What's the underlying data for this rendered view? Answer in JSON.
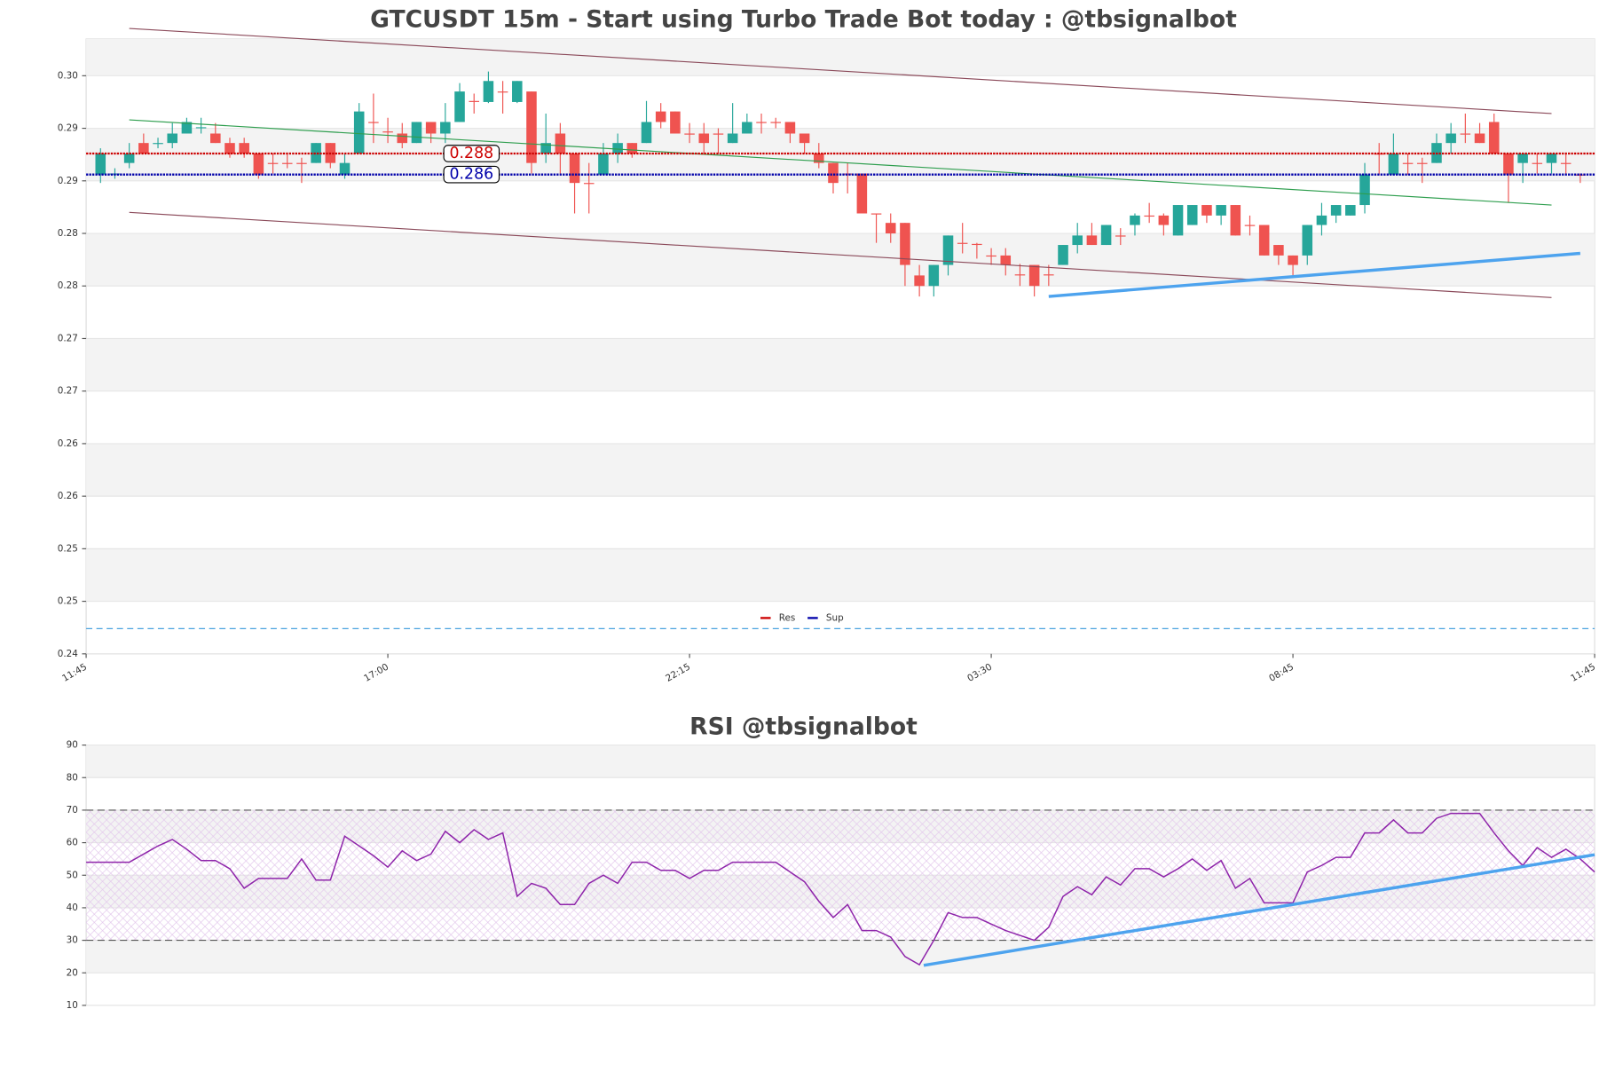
{
  "chart_data": [
    {
      "type": "candlestick",
      "title": "GTCUSDT 15m - Start using Turbo Trade Bot today : @tbsignalbot",
      "x": [
        1,
        2,
        3,
        4,
        5,
        6,
        7,
        8,
        9,
        10,
        11,
        12,
        13,
        14,
        15,
        16,
        17,
        18,
        19,
        20,
        21,
        22,
        23,
        24,
        25,
        26,
        27,
        28,
        29,
        30,
        31,
        32,
        33,
        34,
        35,
        36,
        37,
        38,
        39,
        40,
        41,
        42,
        43,
        44,
        45,
        46,
        47,
        48,
        49,
        50,
        51,
        52,
        53,
        54,
        55,
        56,
        57,
        58,
        59,
        60,
        61,
        62,
        63,
        64,
        65,
        66,
        67,
        68,
        69,
        70,
        71,
        72,
        73,
        74,
        75,
        76,
        77,
        78,
        79,
        80,
        81,
        82,
        83,
        84,
        85,
        86,
        87,
        88,
        89,
        90,
        91,
        92,
        93,
        94,
        95,
        96,
        97,
        98,
        99,
        100,
        101,
        102,
        103,
        104
      ],
      "open": [
        0.2856,
        0.2856,
        0.2867,
        0.2886,
        0.2886,
        0.2886,
        0.2895,
        0.29,
        0.2895,
        0.2886,
        0.2886,
        0.2876,
        0.2867,
        0.2867,
        0.2867,
        0.2867,
        0.2886,
        0.2856,
        0.2876,
        0.2906,
        0.2897,
        0.2895,
        0.2886,
        0.2906,
        0.2895,
        0.2906,
        0.2926,
        0.2925,
        0.2935,
        0.2925,
        0.2935,
        0.2876,
        0.2895,
        0.2876,
        0.2848,
        0.2856,
        0.2876,
        0.2886,
        0.2886,
        0.2916,
        0.2916,
        0.2895,
        0.2895,
        0.2895,
        0.2886,
        0.2895,
        0.2906,
        0.2906,
        0.2906,
        0.2895,
        0.2876,
        0.2867,
        0.2857,
        0.2857,
        0.2819,
        0.281,
        0.281,
        0.276,
        0.275,
        0.277,
        0.2791,
        0.279,
        0.2779,
        0.2779,
        0.2761,
        0.277,
        0.2761,
        0.277,
        0.2789,
        0.2798,
        0.2789,
        0.2798,
        0.2808,
        0.2817,
        0.2817,
        0.2798,
        0.2808,
        0.2827,
        0.2817,
        0.2827,
        0.2808,
        0.2808,
        0.2789,
        0.2779,
        0.2779,
        0.2808,
        0.2817,
        0.2817,
        0.2827,
        0.2876,
        0.2856,
        0.2867,
        0.2867,
        0.2867,
        0.2886,
        0.2895,
        0.2895,
        0.2906,
        0.2876,
        0.2867,
        0.2867,
        0.2867,
        0.2867,
        0.2856
      ],
      "high": [
        0.2881,
        0.2862,
        0.2886,
        0.2895,
        0.2891,
        0.2905,
        0.291,
        0.291,
        0.2905,
        0.2891,
        0.2891,
        0.2876,
        0.2876,
        0.2876,
        0.2872,
        0.2886,
        0.2886,
        0.2876,
        0.2924,
        0.2933,
        0.291,
        0.2905,
        0.2906,
        0.2906,
        0.2924,
        0.2943,
        0.2933,
        0.2954,
        0.2945,
        0.2945,
        0.2935,
        0.2914,
        0.2905,
        0.2876,
        0.2867,
        0.2886,
        0.2895,
        0.2886,
        0.2926,
        0.2924,
        0.2916,
        0.2905,
        0.2905,
        0.29,
        0.2924,
        0.2914,
        0.2914,
        0.291,
        0.2906,
        0.2895,
        0.2886,
        0.2867,
        0.2867,
        0.2857,
        0.2819,
        0.2819,
        0.281,
        0.277,
        0.277,
        0.2798,
        0.281,
        0.2791,
        0.2786,
        0.2786,
        0.2771,
        0.277,
        0.277,
        0.2789,
        0.281,
        0.281,
        0.2808,
        0.2805,
        0.2819,
        0.2829,
        0.2819,
        0.2827,
        0.2827,
        0.2827,
        0.2827,
        0.2827,
        0.2817,
        0.2808,
        0.2789,
        0.2779,
        0.2808,
        0.2829,
        0.2827,
        0.2827,
        0.2867,
        0.2886,
        0.2895,
        0.2876,
        0.2872,
        0.2895,
        0.2905,
        0.2914,
        0.2905,
        0.2914,
        0.2876,
        0.2876,
        0.2876,
        0.2876,
        0.2876,
        0.2857
      ],
      "low": [
        0.2848,
        0.2852,
        0.2862,
        0.2876,
        0.2881,
        0.2881,
        0.2895,
        0.2895,
        0.2886,
        0.2872,
        0.2872,
        0.2852,
        0.2857,
        0.2862,
        0.2848,
        0.2867,
        0.2862,
        0.2852,
        0.2876,
        0.2886,
        0.2886,
        0.2881,
        0.2886,
        0.2886,
        0.2886,
        0.2906,
        0.2914,
        0.2924,
        0.2914,
        0.2924,
        0.2857,
        0.2867,
        0.2857,
        0.2819,
        0.2819,
        0.2856,
        0.2867,
        0.2872,
        0.2886,
        0.29,
        0.2895,
        0.2886,
        0.2876,
        0.2876,
        0.2886,
        0.2895,
        0.2895,
        0.29,
        0.2886,
        0.2876,
        0.2862,
        0.2838,
        0.2838,
        0.2819,
        0.2791,
        0.2791,
        0.275,
        0.274,
        0.274,
        0.276,
        0.2781,
        0.2776,
        0.277,
        0.276,
        0.275,
        0.274,
        0.275,
        0.277,
        0.2781,
        0.2789,
        0.2789,
        0.2789,
        0.2798,
        0.281,
        0.2798,
        0.2798,
        0.2808,
        0.281,
        0.2808,
        0.2798,
        0.2798,
        0.2779,
        0.277,
        0.276,
        0.277,
        0.2798,
        0.281,
        0.2817,
        0.2819,
        0.2856,
        0.2856,
        0.2856,
        0.2848,
        0.2867,
        0.2876,
        0.2886,
        0.2886,
        0.2876,
        0.2829,
        0.2848,
        0.2857,
        0.2857,
        0.2857,
        0.2848
      ],
      "close": [
        0.2876,
        0.2857,
        0.2876,
        0.2876,
        0.2886,
        0.2895,
        0.2906,
        0.2901,
        0.2886,
        0.2876,
        0.2876,
        0.2856,
        0.2866,
        0.2866,
        0.2866,
        0.2886,
        0.2867,
        0.2867,
        0.2916,
        0.2905,
        0.2896,
        0.2886,
        0.2906,
        0.2895,
        0.2906,
        0.2935,
        0.2925,
        0.2945,
        0.2934,
        0.2945,
        0.2867,
        0.2886,
        0.2876,
        0.2848,
        0.2847,
        0.2876,
        0.2886,
        0.2876,
        0.2906,
        0.2906,
        0.2895,
        0.2894,
        0.2886,
        0.2894,
        0.2895,
        0.2906,
        0.2905,
        0.2905,
        0.2895,
        0.2886,
        0.2867,
        0.2848,
        0.2856,
        0.2819,
        0.2818,
        0.28,
        0.277,
        0.275,
        0.277,
        0.2798,
        0.279,
        0.2789,
        0.2778,
        0.277,
        0.276,
        0.275,
        0.276,
        0.2789,
        0.2798,
        0.2789,
        0.2808,
        0.2797,
        0.2817,
        0.2816,
        0.2808,
        0.2827,
        0.2827,
        0.2817,
        0.2827,
        0.2798,
        0.2807,
        0.2779,
        0.2779,
        0.277,
        0.2808,
        0.2817,
        0.2827,
        0.2827,
        0.2856,
        0.2875,
        0.2876,
        0.2866,
        0.2866,
        0.2886,
        0.2895,
        0.2894,
        0.2886,
        0.2876,
        0.2856,
        0.2876,
        0.2866,
        0.2876,
        0.2866,
        0.2855
      ],
      "up_color": "#26a69a",
      "down_color": "#ef5350",
      "xlim": [
        0,
        105
      ],
      "xticks": [
        {
          "value": 0,
          "label": "11:45"
        },
        {
          "value": 21,
          "label": "17:00"
        },
        {
          "value": 42,
          "label": "22:15"
        },
        {
          "value": 63,
          "label": "03:30"
        },
        {
          "value": 84,
          "label": "08:45"
        },
        {
          "value": 105,
          "label": "11:45"
        }
      ],
      "ylim": [
        0.24,
        0.2985
      ],
      "yticks": [
        0.24,
        {
          "value": 0.245,
          "label": "0.25"
        },
        0.25,
        {
          "value": 0.255,
          "label": "0.26"
        },
        0.26,
        {
          "value": 0.265,
          "label": "0.27"
        },
        0.27,
        {
          "value": 0.275,
          "label": "0.28"
        },
        0.28,
        {
          "value": 0.285,
          "label": "0.29"
        },
        0.29,
        {
          "value": 0.295,
          "label": "0.30"
        }
      ],
      "bands": true,
      "hlines": [
        {
          "name": "Res",
          "color": "#cc0000",
          "values": [
            0.2876
          ],
          "value_labels": [
            "0.288"
          ]
        },
        {
          "name": "Sup",
          "color": "#0000aa",
          "values": [
            0.2856
          ],
          "value_labels": [
            "0.286"
          ]
        }
      ],
      "trend_lines": [
        {
          "color": "#8b4a5a",
          "width": 1,
          "x": [
            3,
            102
          ],
          "values": [
            0.2995,
            0.2914
          ]
        },
        {
          "color": "#2e9e4e",
          "width": 1,
          "x": [
            3,
            102
          ],
          "values": [
            0.2908,
            0.2827
          ]
        },
        {
          "color": "#8b4a5a",
          "width": 1,
          "x": [
            3,
            102
          ],
          "values": [
            0.282,
            0.2739
          ]
        },
        {
          "color": "#4da3ee",
          "width": 3,
          "x": [
            67,
            104
          ],
          "values": [
            0.274,
            0.2781
          ]
        }
      ],
      "baseline": {
        "value": 0.2424,
        "color": "#4aa3df"
      },
      "legend": "lower center"
    },
    {
      "type": "line",
      "title": "RSI @tbsignalbot",
      "x": [
        0,
        1,
        2,
        3,
        4,
        5,
        6,
        7,
        8,
        9,
        10,
        11,
        12,
        13,
        14,
        15,
        16,
        17,
        18,
        19,
        20,
        21,
        22,
        23,
        24,
        25,
        26,
        27,
        28,
        29,
        30,
        31,
        32,
        33,
        34,
        35,
        36,
        37,
        38,
        39,
        40,
        41,
        42,
        43,
        44,
        45,
        46,
        47,
        48,
        49,
        50,
        51,
        52,
        53,
        54,
        55,
        56,
        57,
        58,
        59,
        60,
        61,
        62,
        63,
        64,
        65,
        66,
        67,
        68,
        69,
        70,
        71,
        72,
        73,
        74,
        75,
        76,
        77,
        78,
        79,
        80,
        81,
        82,
        83,
        84,
        85,
        86,
        87,
        88,
        89,
        90,
        91,
        92,
        93,
        94,
        95,
        96,
        97,
        98,
        99,
        100,
        101,
        102,
        103,
        104,
        105
      ],
      "series": [
        {
          "color": "#8e24aa",
          "values": [
            54,
            54,
            54,
            54,
            56.5,
            59,
            61,
            58,
            54.5,
            54.5,
            52,
            46,
            49,
            49,
            49,
            55,
            48.5,
            48.5,
            62,
            59,
            56,
            52.5,
            57.5,
            54.5,
            56.5,
            63.5,
            60,
            64,
            61,
            63,
            43.5,
            47.5,
            46,
            41,
            41,
            47.5,
            50,
            47.5,
            54,
            54,
            51.5,
            51.5,
            49,
            51.5,
            51.5,
            54,
            54,
            54,
            54,
            51,
            48,
            42,
            37,
            41,
            33,
            33,
            31,
            25,
            22.5,
            30,
            38.5,
            37,
            37,
            35,
            33,
            31.5,
            30,
            34,
            43.5,
            46.5,
            44,
            49.5,
            47,
            52,
            52,
            49.5,
            52,
            55,
            51.5,
            54.5,
            46,
            49,
            41.5,
            41.5,
            41.5,
            51,
            53,
            55.5,
            55.5,
            63,
            63,
            67,
            63,
            63,
            67.5,
            69,
            69,
            69,
            63,
            57.5,
            53,
            58.5,
            55.5,
            58,
            55,
            51
          ]
        }
      ],
      "xlim": [
        0,
        105
      ],
      "ylim": [
        10,
        90
      ],
      "yticks": [
        10,
        20,
        30,
        40,
        50,
        60,
        70,
        80,
        90
      ],
      "bands": true,
      "guides": [
        30,
        70
      ],
      "trend_lines": [
        {
          "color": "#4da3ee",
          "width": 3,
          "x": [
            58.3,
            105
          ],
          "values": [
            22.3,
            56.3
          ]
        }
      ]
    }
  ]
}
